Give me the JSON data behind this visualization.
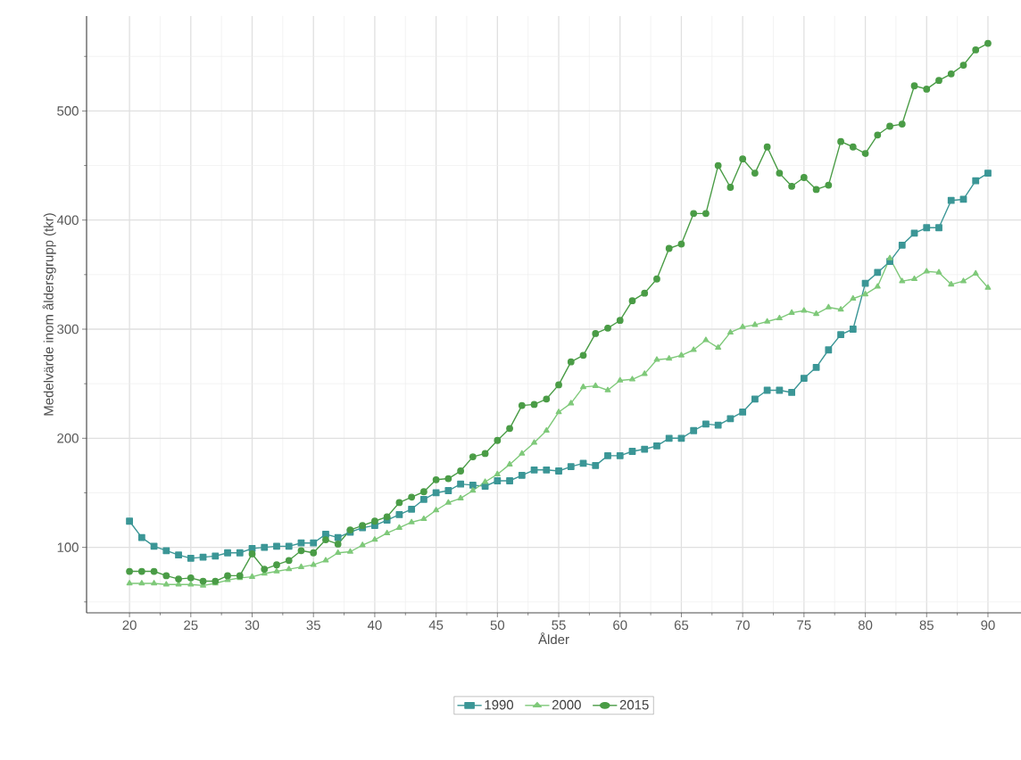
{
  "chart_data": {
    "type": "line",
    "xlabel": "Ålder",
    "ylabel": "Medelvärde inom åldersgrupp (tkr)",
    "x": [
      20,
      21,
      22,
      23,
      24,
      25,
      26,
      27,
      28,
      29,
      30,
      31,
      32,
      33,
      34,
      35,
      36,
      37,
      38,
      39,
      40,
      41,
      42,
      43,
      44,
      45,
      46,
      47,
      48,
      49,
      50,
      51,
      52,
      53,
      54,
      55,
      56,
      57,
      58,
      59,
      60,
      61,
      62,
      63,
      64,
      65,
      66,
      67,
      68,
      69,
      70,
      71,
      72,
      73,
      74,
      75,
      76,
      77,
      78,
      79,
      80,
      81,
      82,
      83,
      84,
      85,
      86,
      87,
      88,
      89,
      90
    ],
    "series": [
      {
        "name": "1990",
        "color": "#3b9696",
        "marker": "square",
        "values": [
          124,
          109,
          101,
          97,
          93,
          90,
          91,
          92,
          95,
          95,
          99,
          100,
          101,
          101,
          104,
          104,
          112,
          109,
          114,
          118,
          120,
          125,
          130,
          135,
          144,
          150,
          152,
          158,
          157,
          156,
          161,
          161,
          166,
          171,
          171,
          170,
          174,
          177,
          175,
          184,
          184,
          188,
          190,
          193,
          200,
          200,
          207,
          213,
          212,
          218,
          224,
          236,
          244,
          244,
          242,
          255,
          265,
          281,
          295,
          300,
          342,
          352,
          362,
          377,
          388,
          393,
          393,
          418,
          419,
          436,
          443
        ]
      },
      {
        "name": "2000",
        "color": "#7fc97a",
        "marker": "triangle",
        "values": [
          67,
          67,
          67,
          66,
          66,
          66,
          65,
          67,
          70,
          72,
          73,
          76,
          78,
          80,
          82,
          84,
          88,
          95,
          96,
          102,
          107,
          113,
          118,
          123,
          126,
          134,
          141,
          145,
          152,
          160,
          167,
          176,
          186,
          196,
          207,
          224,
          232,
          247,
          248,
          244,
          253,
          254,
          259,
          272,
          273,
          276,
          281,
          290,
          283,
          297,
          302,
          304,
          307,
          310,
          315,
          317,
          314,
          320,
          318,
          328,
          332,
          339,
          365,
          344,
          346,
          353,
          352,
          341,
          344,
          351,
          338
        ]
      },
      {
        "name": "2015",
        "color": "#4a9c46",
        "marker": "circle",
        "values": [
          78,
          78,
          78,
          74,
          71,
          72,
          69,
          69,
          74,
          74,
          94,
          80,
          84,
          88,
          97,
          95,
          107,
          103,
          116,
          120,
          124,
          128,
          141,
          146,
          151,
          162,
          163,
          170,
          183,
          186,
          198,
          209,
          230,
          231,
          236,
          249,
          270,
          276,
          296,
          301,
          308,
          326,
          333,
          346,
          374,
          378,
          406,
          406,
          450,
          430,
          456,
          443,
          467,
          443,
          431,
          439,
          428,
          432,
          472,
          467,
          461,
          478,
          486,
          488,
          523,
          520,
          528,
          534,
          542,
          556,
          562
        ]
      }
    ],
    "xlim": [
      16.5,
      92.7
    ],
    "ylim": [
      40,
      587
    ],
    "xticks": [
      20,
      25,
      30,
      35,
      40,
      45,
      50,
      55,
      60,
      65,
      70,
      75,
      80,
      85,
      90
    ],
    "yticks": [
      100,
      200,
      300,
      400,
      500
    ],
    "grid": true,
    "legend": "bottom",
    "line_style": "solid"
  }
}
